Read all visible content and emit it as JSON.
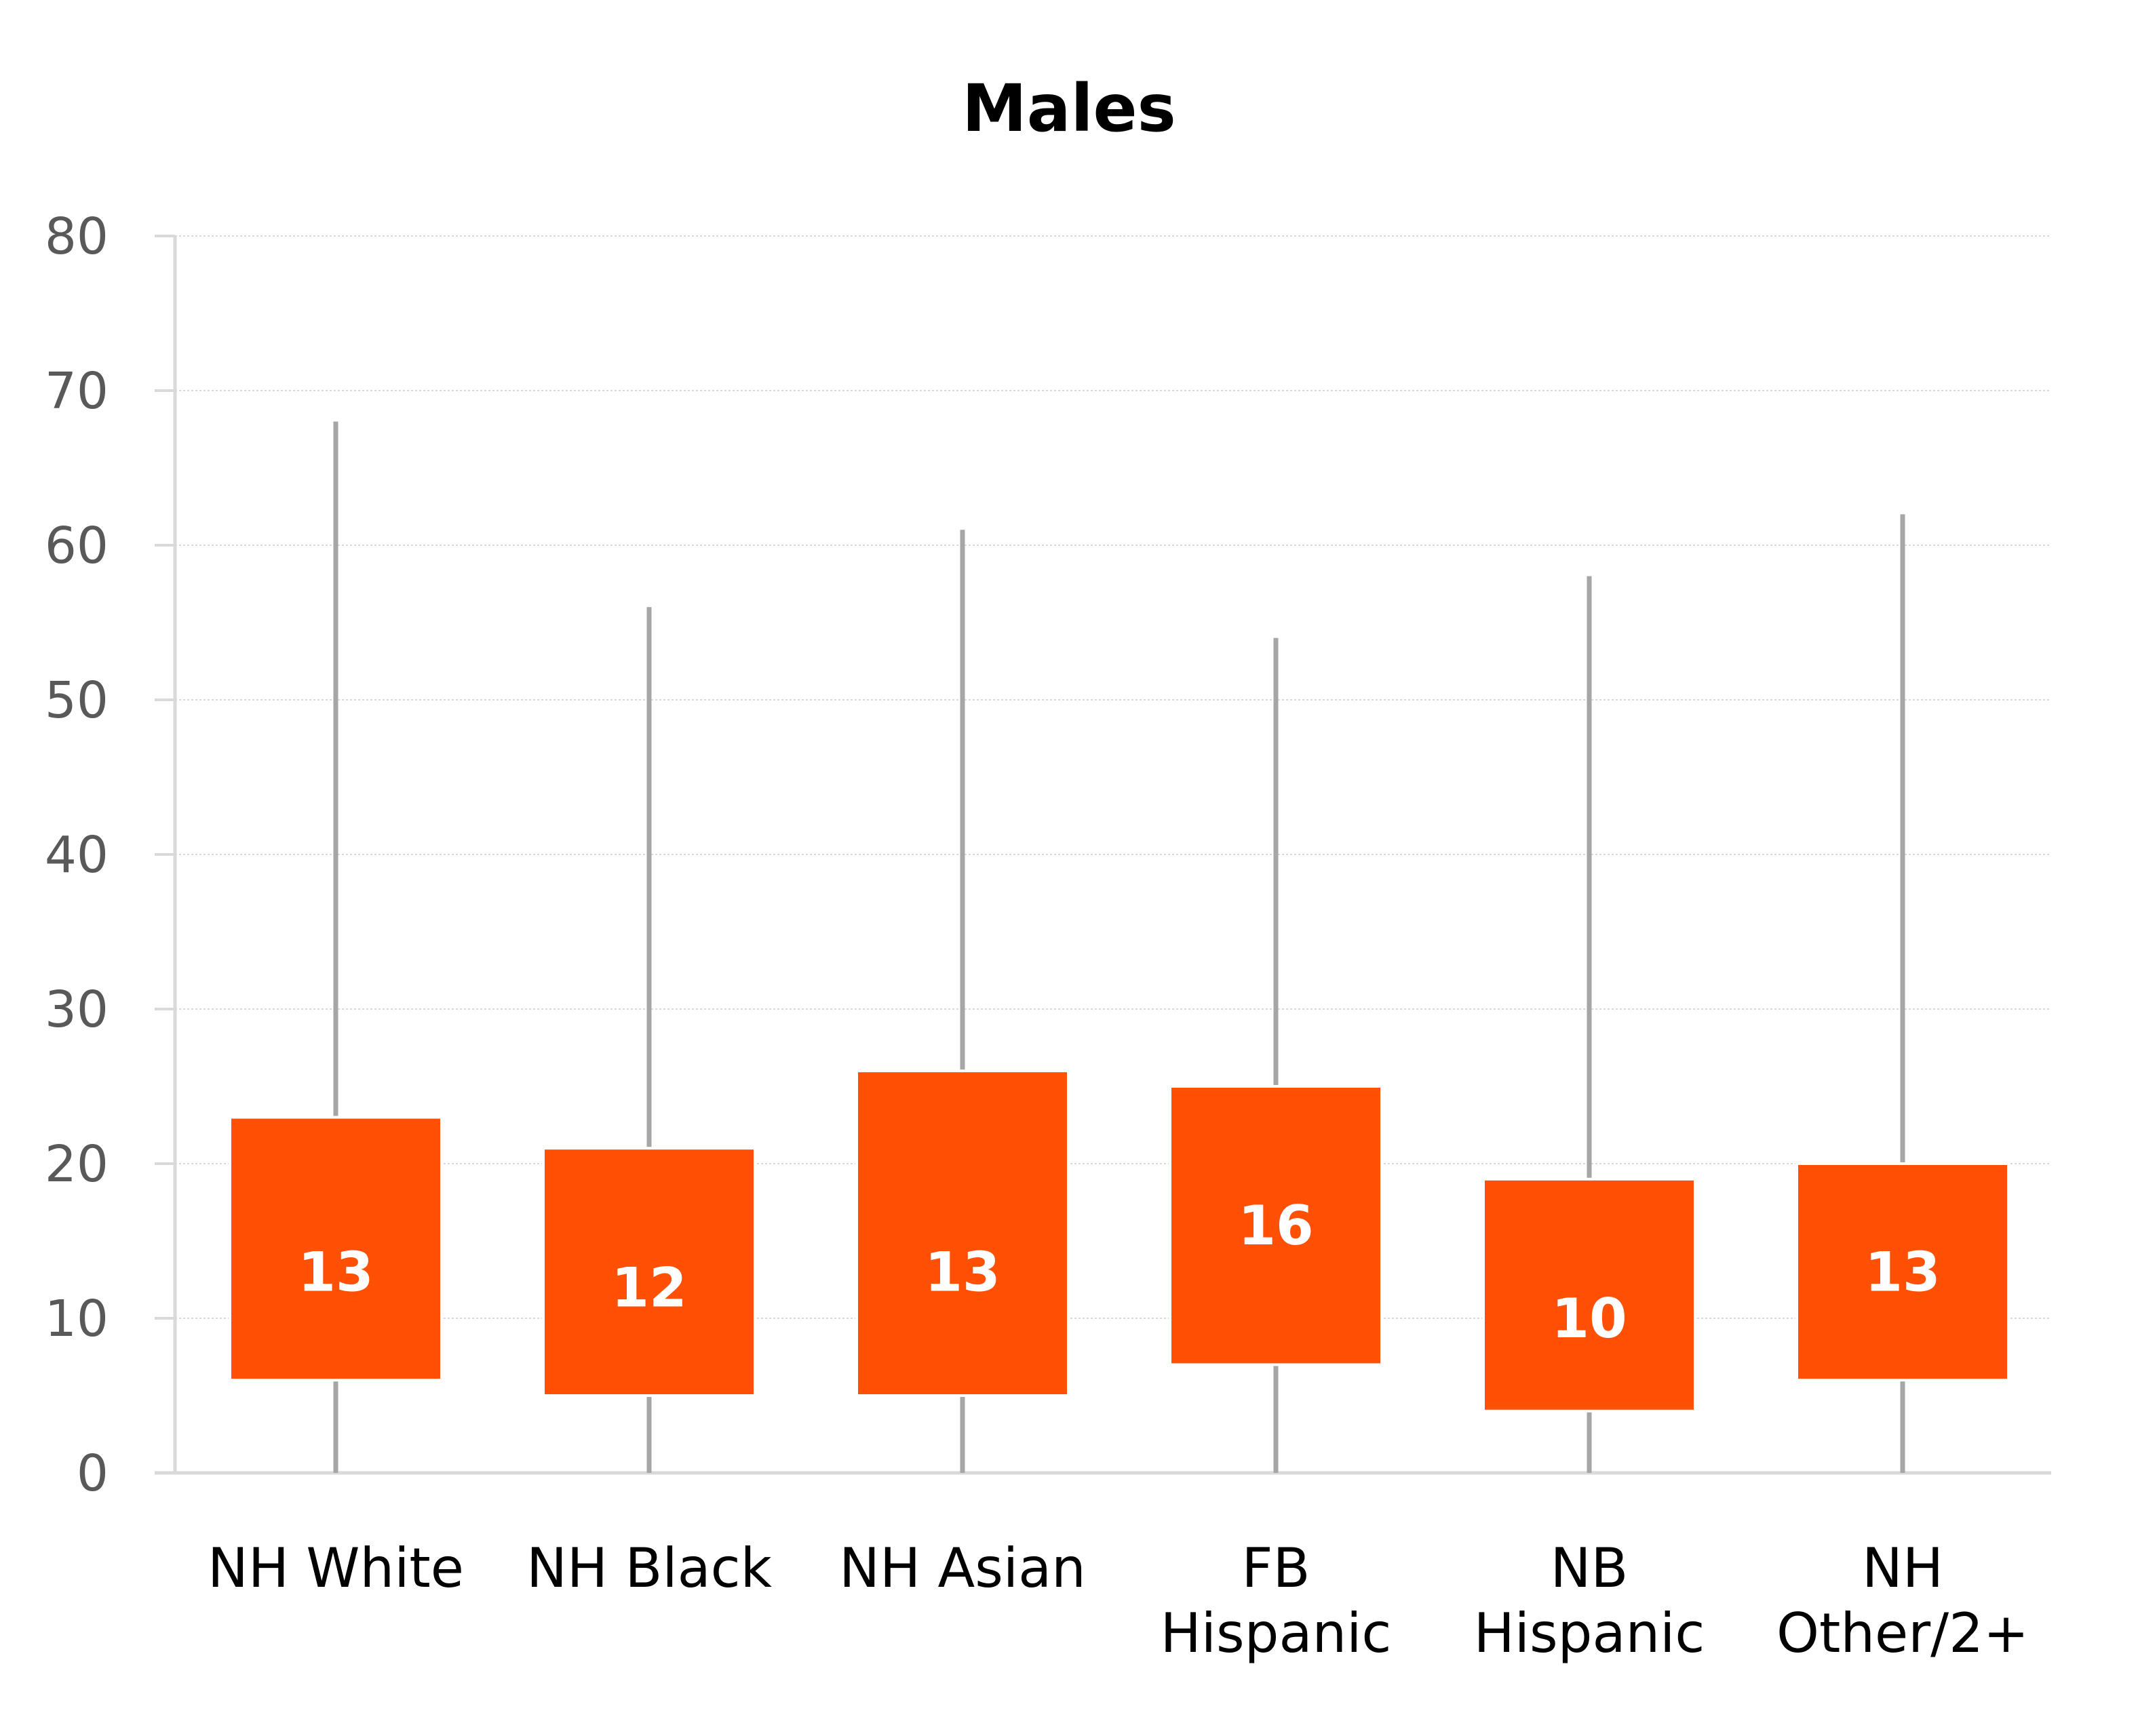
{
  "chart_data": {
    "type": "box",
    "title": "Males",
    "xlabel": "",
    "ylabel": "",
    "ylim": [
      0,
      80
    ],
    "yticks": [
      0,
      10,
      20,
      30,
      40,
      50,
      60,
      70,
      80
    ],
    "ytick_labels": [
      "0",
      "10",
      "20",
      "30",
      "40",
      "50",
      "60",
      "70",
      "80"
    ],
    "grid": true,
    "legend": "none",
    "box_color": "#FF5005",
    "whisker_color": "#A6A6A6",
    "median_label_color": "#FFFFFF",
    "categories": [
      [
        "NH White"
      ],
      [
        "NH Black"
      ],
      [
        "NH Asian"
      ],
      [
        "FB",
        "Hispanic"
      ],
      [
        "NB",
        "Hispanic"
      ],
      [
        "NH",
        "Other/2+"
      ]
    ],
    "series": [
      {
        "min": 0,
        "q1": 6,
        "median": 13,
        "q3": 23,
        "max": 68,
        "median_label": "13"
      },
      {
        "min": 0,
        "q1": 5,
        "median": 12,
        "q3": 21,
        "max": 56,
        "median_label": "12"
      },
      {
        "min": 0,
        "q1": 5,
        "median": 13,
        "q3": 26,
        "max": 61,
        "median_label": "13"
      },
      {
        "min": 0,
        "q1": 7,
        "median": 16,
        "q3": 25,
        "max": 54,
        "median_label": "16"
      },
      {
        "min": 0,
        "q1": 4,
        "median": 10,
        "q3": 19,
        "max": 58,
        "median_label": "10"
      },
      {
        "min": 0,
        "q1": 6,
        "median": 13,
        "q3": 20,
        "max": 62,
        "median_label": "13"
      }
    ]
  }
}
